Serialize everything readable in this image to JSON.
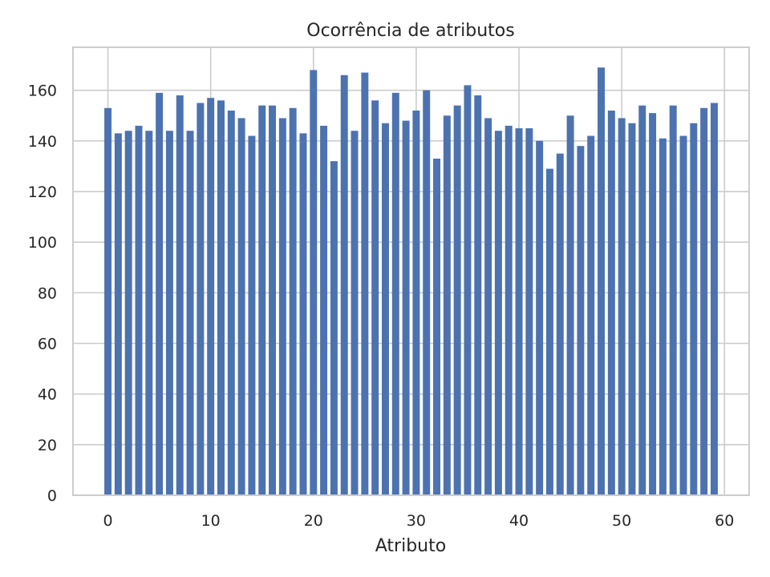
{
  "chart_data": {
    "type": "bar",
    "title": "Ocorrência de atributos",
    "xlabel": "Atributo",
    "ylabel": "",
    "x": [
      0,
      1,
      2,
      3,
      4,
      5,
      6,
      7,
      8,
      9,
      10,
      11,
      12,
      13,
      14,
      15,
      16,
      17,
      18,
      19,
      20,
      21,
      22,
      23,
      24,
      25,
      26,
      27,
      28,
      29,
      30,
      31,
      32,
      33,
      34,
      35,
      36,
      37,
      38,
      39,
      40,
      41,
      42,
      43,
      44,
      45,
      46,
      47,
      48,
      49,
      50,
      51,
      52,
      53,
      54,
      55,
      56,
      57,
      58,
      59
    ],
    "values": [
      153,
      143,
      144,
      146,
      144,
      159,
      144,
      158,
      144,
      155,
      157,
      156,
      152,
      149,
      142,
      154,
      154,
      149,
      153,
      143,
      168,
      146,
      132,
      166,
      144,
      167,
      156,
      147,
      159,
      148,
      152,
      160,
      133,
      150,
      154,
      162,
      158,
      149,
      144,
      146,
      145,
      145,
      140,
      129,
      135,
      150,
      138,
      142,
      169,
      152,
      149,
      147,
      154,
      151,
      141,
      154,
      142,
      147,
      153,
      155
    ],
    "xlim": [
      -3.4,
      62.4
    ],
    "ylim": [
      0,
      177
    ],
    "xticks": [
      0,
      10,
      20,
      30,
      40,
      50,
      60
    ],
    "yticks": [
      0,
      20,
      40,
      60,
      80,
      100,
      120,
      140,
      160
    ],
    "grid": true,
    "colors": {
      "bar": "#4c72b0",
      "grid": "#cccccc",
      "text": "#262626"
    }
  }
}
